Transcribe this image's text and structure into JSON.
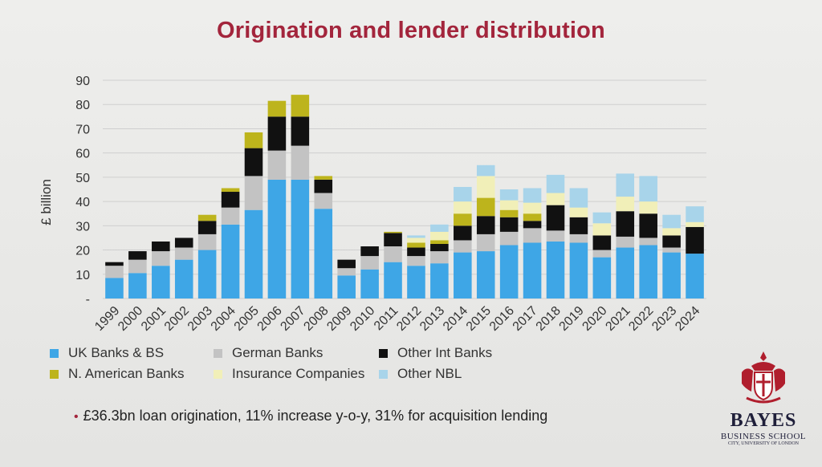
{
  "title": "Origination and lender distribution",
  "bullet": "£36.3bn loan origination, 11% increase y-o-y, 31% for acquisition lending",
  "logo": {
    "name": "BAYES",
    "line1": "BUSINESS SCHOOL",
    "line2": "CITY, UNIVERSITY OF LONDON"
  },
  "legend_items": [
    {
      "label": "UK Banks & BS",
      "color": "#3ea6e6"
    },
    {
      "label": "German Banks",
      "color": "#c3c3c3"
    },
    {
      "label": "Other Int Banks",
      "color": "#111111"
    },
    {
      "label": "N. American Banks",
      "color": "#bdb41c"
    },
    {
      "label": "Insurance Companies",
      "color": "#f1efb8"
    },
    {
      "label": "Other NBL",
      "color": "#a8d4ea"
    }
  ],
  "chart_data": {
    "type": "bar",
    "stacked": true,
    "ylabel": "£ billion",
    "ylim": [
      0,
      90
    ],
    "yticks": [
      0,
      10,
      20,
      30,
      40,
      50,
      60,
      70,
      80,
      90
    ],
    "ytick_labels": [
      "-",
      "10",
      "20",
      "30",
      "40",
      "50",
      "60",
      "70",
      "80",
      "90"
    ],
    "grid": true,
    "legend_position": "bottom",
    "categories": [
      "1999",
      "2000",
      "2001",
      "2002",
      "2003",
      "2004",
      "2005",
      "2006",
      "2007",
      "2008",
      "2009",
      "2010",
      "2011",
      "2012",
      "2013",
      "2014",
      "2015",
      "2016",
      "2017",
      "2018",
      "2019",
      "2020",
      "2021",
      "2022",
      "2023",
      "2024"
    ],
    "series": [
      {
        "name": "UK Banks & BS",
        "color": "#3ea6e6",
        "values": [
          8.5,
          10.5,
          13.5,
          16,
          20,
          30.5,
          36.5,
          49,
          49,
          37,
          9.5,
          12,
          15,
          13.5,
          14.5,
          19,
          19.5,
          22,
          23,
          23.5,
          23,
          17,
          21,
          22,
          19,
          18.5
        ]
      },
      {
        "name": "German Banks",
        "color": "#c3c3c3",
        "values": [
          5,
          5.5,
          6,
          5,
          6.5,
          7,
          14,
          12,
          14,
          6.5,
          3,
          5.5,
          6.5,
          4,
          5,
          5,
          7,
          5.5,
          6,
          4.5,
          3.5,
          3,
          4.5,
          3,
          2,
          0
        ]
      },
      {
        "name": "Other Int Banks",
        "color": "#111111",
        "values": [
          1.5,
          3.5,
          4,
          4,
          5.5,
          6.5,
          11.5,
          14,
          12,
          5.5,
          3.5,
          4,
          5.5,
          3.5,
          3,
          6,
          7.5,
          6,
          3,
          10.5,
          7,
          6,
          10.5,
          10,
          5,
          11
        ]
      },
      {
        "name": "N. American Banks",
        "color": "#bdb41c",
        "values": [
          0,
          0,
          0,
          0,
          2.5,
          1.5,
          6.5,
          6.5,
          9,
          1.5,
          0,
          0,
          0.5,
          2,
          1.5,
          5,
          7.5,
          3,
          3,
          0,
          0,
          0,
          0,
          0,
          0,
          0
        ]
      },
      {
        "name": "Insurance Companies",
        "color": "#f1efb8",
        "values": [
          0,
          0,
          0,
          0,
          0,
          0,
          0,
          0,
          0,
          0,
          0,
          0,
          0,
          2,
          3.5,
          5,
          9,
          4,
          4.5,
          5,
          4,
          5,
          6,
          5,
          3,
          2
        ]
      },
      {
        "name": "Other NBL",
        "color": "#a8d4ea",
        "values": [
          0,
          0,
          0,
          0,
          0,
          0,
          0,
          0,
          0,
          0,
          0,
          0,
          0,
          1,
          3,
          6,
          4.5,
          4.5,
          6,
          7.5,
          8,
          4.5,
          9.5,
          10.5,
          5.5,
          6.5
        ]
      }
    ]
  }
}
